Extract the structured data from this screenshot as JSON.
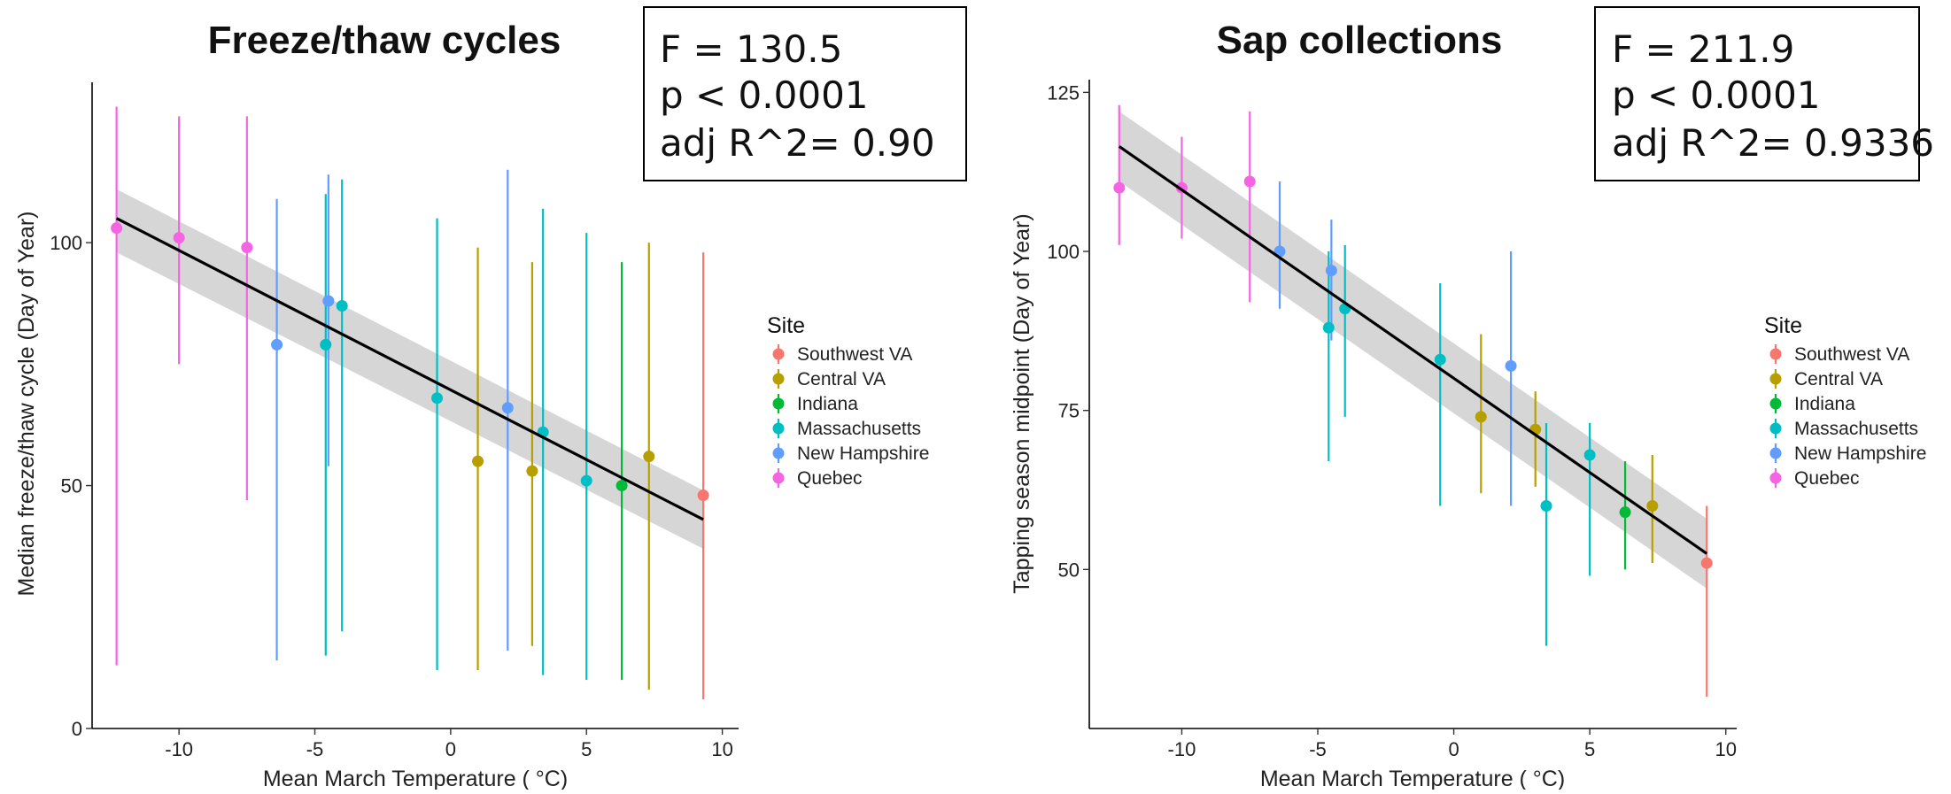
{
  "chart_data": [
    {
      "type": "scatter",
      "title": "Freeze/thaw cycles",
      "stats": [
        "F = 130.5",
        "p < 0.0001",
        "adj R^2= 0.90"
      ],
      "xlabel": "Mean March Temperature ( °C)",
      "ylabel": "Median freeze/thaw cycle (Day of Year)",
      "xlim": [
        -13.2,
        10.6
      ],
      "ylim": [
        0,
        133
      ],
      "xticks": [
        "-10",
        "-5",
        "0",
        "5",
        "10"
      ],
      "yticks": [
        "0",
        "50",
        "100"
      ],
      "legend_title": "Site",
      "legend_position": "right",
      "grid": false,
      "regression": {
        "x": [
          -12.3,
          9.3
        ],
        "y": [
          105,
          43
        ],
        "ci_start": [
          98,
          111
        ],
        "ci_end": [
          37,
          49
        ]
      },
      "series": [
        {
          "name": "Southwest VA",
          "color": "#F8766D",
          "points": [
            {
              "x": 9.3,
              "y": 48,
              "ymin": 6,
              "ymax": 98
            }
          ]
        },
        {
          "name": "Central VA",
          "color": "#B79F00",
          "points": [
            {
              "x": 1.0,
              "y": 55,
              "ymin": 12,
              "ymax": 99
            },
            {
              "x": 3.0,
              "y": 53,
              "ymin": 17,
              "ymax": 96
            },
            {
              "x": 7.3,
              "y": 56,
              "ymin": 8,
              "ymax": 100
            }
          ]
        },
        {
          "name": "Indiana",
          "color": "#00BA38",
          "points": [
            {
              "x": 6.3,
              "y": 50,
              "ymin": 10,
              "ymax": 96
            }
          ]
        },
        {
          "name": "Massachusetts",
          "color": "#00BFC4",
          "points": [
            {
              "x": -4.6,
              "y": 79,
              "ymin": 15,
              "ymax": 110
            },
            {
              "x": -4.0,
              "y": 87,
              "ymin": 20,
              "ymax": 113
            },
            {
              "x": -0.5,
              "y": 68,
              "ymin": 12,
              "ymax": 105
            },
            {
              "x": 3.4,
              "y": 61,
              "ymin": 11,
              "ymax": 107
            },
            {
              "x": 5.0,
              "y": 51,
              "ymin": 10,
              "ymax": 102
            }
          ]
        },
        {
          "name": "New Hampshire",
          "color": "#619CFF",
          "points": [
            {
              "x": -6.4,
              "y": 79,
              "ymin": 14,
              "ymax": 109
            },
            {
              "x": -4.5,
              "y": 88,
              "ymin": 54,
              "ymax": 114
            },
            {
              "x": 2.1,
              "y": 66,
              "ymin": 16,
              "ymax": 115
            }
          ]
        },
        {
          "name": "Quebec",
          "color": "#F564E3",
          "points": [
            {
              "x": -12.3,
              "y": 103,
              "ymin": 13,
              "ymax": 128
            },
            {
              "x": -10.0,
              "y": 101,
              "ymin": 75,
              "ymax": 126
            },
            {
              "x": -7.5,
              "y": 99,
              "ymin": 47,
              "ymax": 126
            }
          ]
        }
      ]
    },
    {
      "type": "scatter",
      "title": "Sap collections",
      "stats": [
        "F = 211.9",
        "p < 0.0001",
        "adj R^2= 0.9336"
      ],
      "xlabel": "Mean March Temperature ( °C)",
      "ylabel": "Tapping season midpoint (Day of Year)",
      "xlim": [
        -13.4,
        10.4
      ],
      "ylim": [
        25,
        127
      ],
      "xticks": [
        "-10",
        "-5",
        "0",
        "5",
        "10"
      ],
      "yticks": [
        "50",
        "75",
        "100",
        "125"
      ],
      "legend_title": "Site",
      "legend_position": "right",
      "grid": false,
      "regression": {
        "x": [
          -12.3,
          9.3
        ],
        "y": [
          116.5,
          52.5
        ],
        "ci_start": [
          111,
          122
        ],
        "ci_end": [
          47,
          58
        ]
      },
      "series": [
        {
          "name": "Southwest VA",
          "color": "#F8766D",
          "points": [
            {
              "x": 9.3,
              "y": 51,
              "ymin": 30,
              "ymax": 60
            }
          ]
        },
        {
          "name": "Central VA",
          "color": "#B79F00",
          "points": [
            {
              "x": 1.0,
              "y": 74,
              "ymin": 62,
              "ymax": 87
            },
            {
              "x": 3.0,
              "y": 72,
              "ymin": 63,
              "ymax": 78
            },
            {
              "x": 7.3,
              "y": 60,
              "ymin": 51,
              "ymax": 68
            }
          ]
        },
        {
          "name": "Indiana",
          "color": "#00BA38",
          "points": [
            {
              "x": 6.3,
              "y": 59,
              "ymin": 50,
              "ymax": 67
            }
          ]
        },
        {
          "name": "Massachusetts",
          "color": "#00BFC4",
          "points": [
            {
              "x": -4.6,
              "y": 88,
              "ymin": 67,
              "ymax": 100
            },
            {
              "x": -4.0,
              "y": 91,
              "ymin": 74,
              "ymax": 101
            },
            {
              "x": -0.5,
              "y": 83,
              "ymin": 60,
              "ymax": 95
            },
            {
              "x": 3.4,
              "y": 60,
              "ymin": 38,
              "ymax": 73
            },
            {
              "x": 5.0,
              "y": 68,
              "ymin": 49,
              "ymax": 73
            }
          ]
        },
        {
          "name": "New Hampshire",
          "color": "#619CFF",
          "points": [
            {
              "x": -6.4,
              "y": 100,
              "ymin": 91,
              "ymax": 111
            },
            {
              "x": -4.5,
              "y": 97,
              "ymin": 86,
              "ymax": 105
            },
            {
              "x": 2.1,
              "y": 82,
              "ymin": 60,
              "ymax": 100
            }
          ]
        },
        {
          "name": "Quebec",
          "color": "#F564E3",
          "points": [
            {
              "x": -12.3,
              "y": 110,
              "ymin": 101,
              "ymax": 123
            },
            {
              "x": -10.0,
              "y": 110,
              "ymin": 102,
              "ymax": 118
            },
            {
              "x": -7.5,
              "y": 111,
              "ymin": 92,
              "ymax": 122
            }
          ]
        }
      ]
    }
  ]
}
